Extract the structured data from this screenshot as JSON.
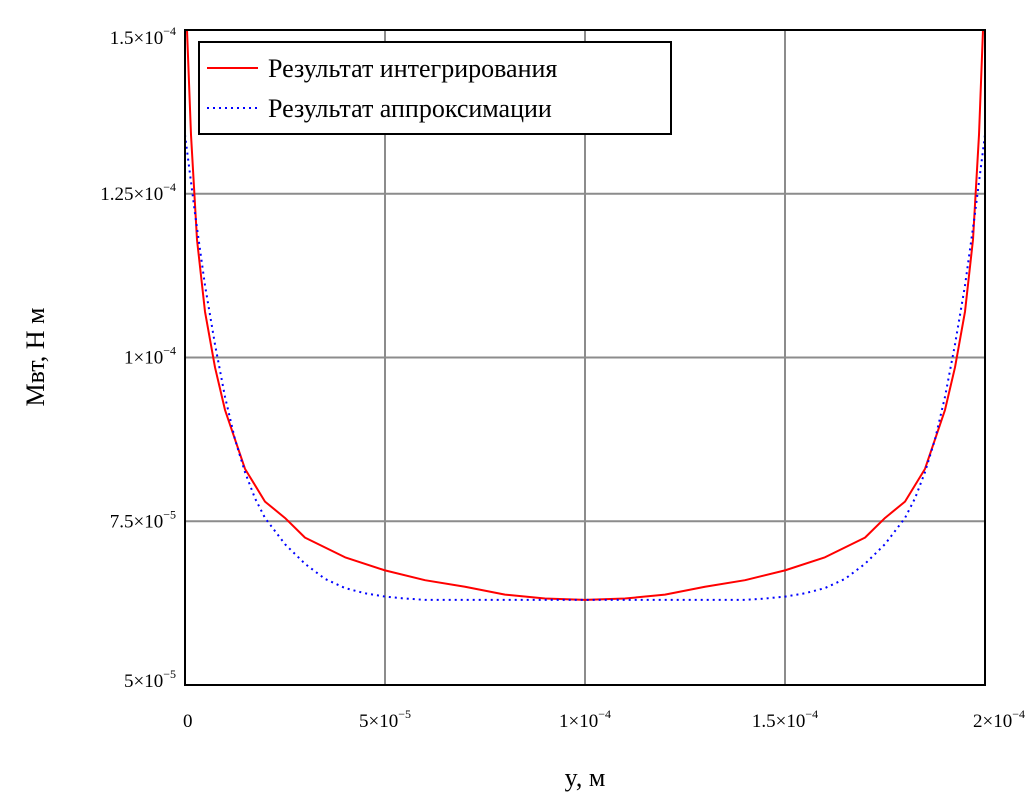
{
  "chart_data": {
    "type": "line",
    "xlabel": "y, м",
    "ylabel": "Мвт, Н м",
    "xlim": [
      0,
      0.0002
    ],
    "ylim": [
      5e-05,
      0.00015
    ],
    "grid": true,
    "legend_position": "top-left",
    "x_ticks": [
      {
        "value": 0,
        "mantissa": "0",
        "exponent": ""
      },
      {
        "value": 5e-05,
        "mantissa": "5×10",
        "exponent": "−5"
      },
      {
        "value": 0.0001,
        "mantissa": "1×10",
        "exponent": "−4"
      },
      {
        "value": 0.00015,
        "mantissa": "1.5×10",
        "exponent": "−4"
      },
      {
        "value": 0.0002,
        "mantissa": "2×10",
        "exponent": "−4"
      }
    ],
    "y_ticks": [
      {
        "value": 5e-05,
        "mantissa": "5×10",
        "exponent": "−5"
      },
      {
        "value": 7.5e-05,
        "mantissa": "7.5×10",
        "exponent": "−5"
      },
      {
        "value": 0.0001,
        "mantissa": "1×10",
        "exponent": "−4"
      },
      {
        "value": 0.000125,
        "mantissa": "1.25×10",
        "exponent": "−4"
      },
      {
        "value": 0.00015,
        "mantissa": "1.5×10",
        "exponent": "−4"
      }
    ],
    "series": [
      {
        "name": "Результат интегрирования",
        "color": "#ff0000",
        "style": "solid",
        "x": [
          5e-07,
          1.5e-06,
          3e-06,
          5e-06,
          7.5e-06,
          1e-05,
          1.5e-05,
          2e-05,
          2.5e-05,
          3e-05,
          4e-05,
          5e-05,
          6e-05,
          7e-05,
          8e-05,
          9e-05,
          0.0001,
          0.00011,
          0.00012,
          0.00013,
          0.00014,
          0.00015,
          0.00016,
          0.00017,
          0.000175,
          0.00018,
          0.000185,
          0.00019,
          0.0001925,
          0.000195,
          0.000197,
          0.0001985,
          0.0001995
        ],
        "y": [
          0.00015,
          0.000134,
          0.000118,
          0.000107,
          9.85e-05,
          9.2e-05,
          8.3e-05,
          7.8e-05,
          7.55e-05,
          7.25e-05,
          6.95e-05,
          6.75e-05,
          6.6e-05,
          6.5e-05,
          6.38e-05,
          6.32e-05,
          6.3e-05,
          6.32e-05,
          6.38e-05,
          6.5e-05,
          6.6e-05,
          6.75e-05,
          6.95e-05,
          7.25e-05,
          7.55e-05,
          7.8e-05,
          8.3e-05,
          9.2e-05,
          9.85e-05,
          0.000107,
          0.000118,
          0.000134,
          0.00015
        ]
      },
      {
        "name": "Результат аппроксимации",
        "color": "#0000ff",
        "style": "dotted",
        "x": [
          0,
          2.5e-06,
          5e-06,
          7.5e-06,
          1e-05,
          1.25e-05,
          1.5e-05,
          1.75e-05,
          2e-05,
          2.5e-05,
          3e-05,
          3.5e-05,
          4e-05,
          4.5e-05,
          5e-05,
          5.5e-05,
          6e-05,
          7e-05,
          8e-05,
          9e-05,
          0.0001,
          0.00011,
          0.00012,
          0.00013,
          0.00014,
          0.000145,
          0.00015,
          0.000155,
          0.00016,
          0.000165,
          0.00017,
          0.000175,
          0.00018,
          0.0001825,
          0.000185,
          0.0001875,
          0.00019,
          0.0001925,
          0.000195,
          0.0001975,
          0.0002
        ],
        "y": [
          0.000134,
          0.000122,
          0.000111,
          0.000102,
          9.4e-05,
          8.75e-05,
          8.25e-05,
          7.85e-05,
          7.55e-05,
          7.15e-05,
          6.85e-05,
          6.62e-05,
          6.48e-05,
          6.4e-05,
          6.35e-05,
          6.32e-05,
          6.3e-05,
          6.3e-05,
          6.3e-05,
          6.3e-05,
          6.3e-05,
          6.3e-05,
          6.3e-05,
          6.3e-05,
          6.3e-05,
          6.32e-05,
          6.35e-05,
          6.4e-05,
          6.48e-05,
          6.62e-05,
          6.85e-05,
          7.15e-05,
          7.55e-05,
          7.85e-05,
          8.25e-05,
          8.75e-05,
          9.4e-05,
          0.000102,
          0.000111,
          0.000122,
          0.000134
        ]
      }
    ]
  }
}
